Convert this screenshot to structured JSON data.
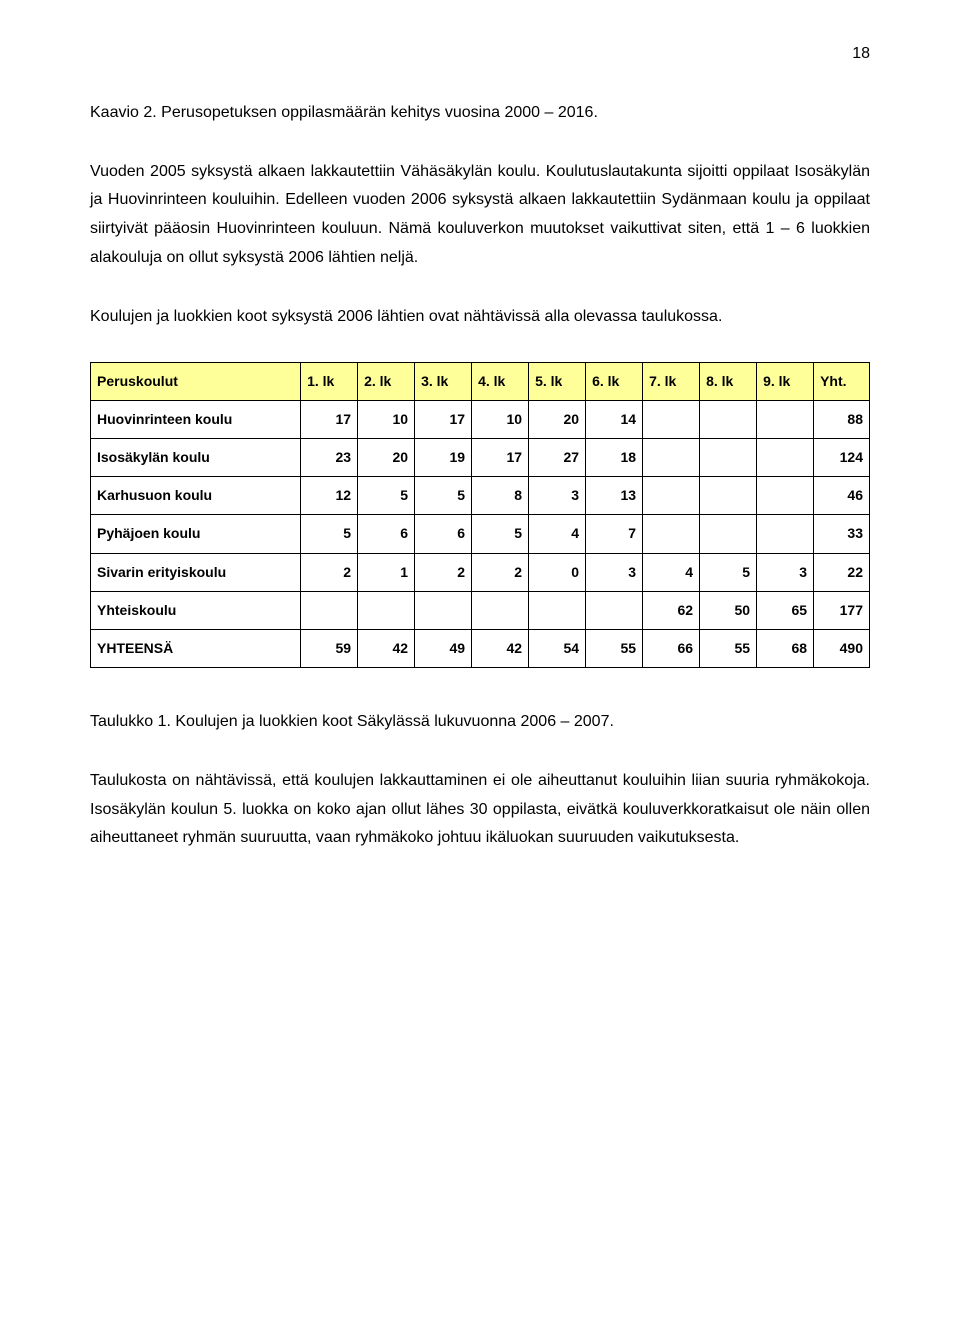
{
  "page_number": "18",
  "chart_caption": "Kaavio 2. Perusopetuksen oppilasmäärän kehitys vuosina 2000 – 2016.",
  "para1": "Vuoden 2005 syksystä alkaen lakkautettiin Vähäsäkylän koulu. Koulutuslautakunta sijoitti oppilaat Isosäkylän ja Huovinrinteen kouluihin. Edelleen vuoden 2006 syksystä alkaen lakkautettiin Sydänmaan koulu ja oppilaat siirtyivät pääosin Huovinrinteen kouluun. Nämä kouluverkon muutokset vaikuttivat siten, että 1 – 6 luokkien alakouluja on ollut syksystä 2006 lähtien neljä.",
  "para2": "Koulujen ja luokkien koot syksystä 2006 lähtien ovat nähtävissä alla olevassa taulukossa.",
  "table": {
    "header_cells": [
      "Peruskoulut",
      "1. lk",
      "2. lk",
      "3. lk",
      "4. lk",
      "5. lk",
      "6. lk",
      "7. lk",
      "8. lk",
      "9. lk",
      "Yht."
    ],
    "header_bg": "#ffff99",
    "border_color": "#000000",
    "rows": [
      {
        "label": "Huovinrinteen koulu",
        "cells": [
          "17",
          "10",
          "17",
          "10",
          "20",
          "14",
          "",
          "",
          "",
          "88"
        ]
      },
      {
        "label": "Isosäkylän koulu",
        "cells": [
          "23",
          "20",
          "19",
          "17",
          "27",
          "18",
          "",
          "",
          "",
          "124"
        ]
      },
      {
        "label": "Karhusuon koulu",
        "cells": [
          "12",
          "5",
          "5",
          "8",
          "3",
          "13",
          "",
          "",
          "",
          "46"
        ]
      },
      {
        "label": "Pyhäjoen koulu",
        "cells": [
          "5",
          "6",
          "6",
          "5",
          "4",
          "7",
          "",
          "",
          "",
          "33"
        ]
      },
      {
        "label": "Sivarin erityiskoulu",
        "cells": [
          "2",
          "1",
          "2",
          "2",
          "0",
          "3",
          "4",
          "5",
          "3",
          "22"
        ]
      },
      {
        "label": "Yhteiskoulu",
        "cells": [
          "",
          "",
          "",
          "",
          "",
          "",
          "62",
          "50",
          "65",
          "177"
        ]
      },
      {
        "label": "YHTEENSÄ",
        "cells": [
          "59",
          "42",
          "49",
          "42",
          "54",
          "55",
          "66",
          "55",
          "68",
          "490"
        ]
      }
    ]
  },
  "table_caption": "Taulukko 1.  Koulujen ja luokkien koot Säkylässä lukuvuonna 2006 – 2007.",
  "para3": "Taulukosta on nähtävissä, että koulujen lakkauttaminen ei ole aiheuttanut kouluihin liian suuria ryhmäkokoja. Isosäkylän koulun 5. luokka on koko ajan ollut lähes 30 oppilasta, eivätkä kouluverkkoratkaisut ole näin ollen aiheuttaneet ryhmän suuruutta, vaan ryhmäkoko johtuu ikäluokan suuruuden vaikutuksesta."
}
